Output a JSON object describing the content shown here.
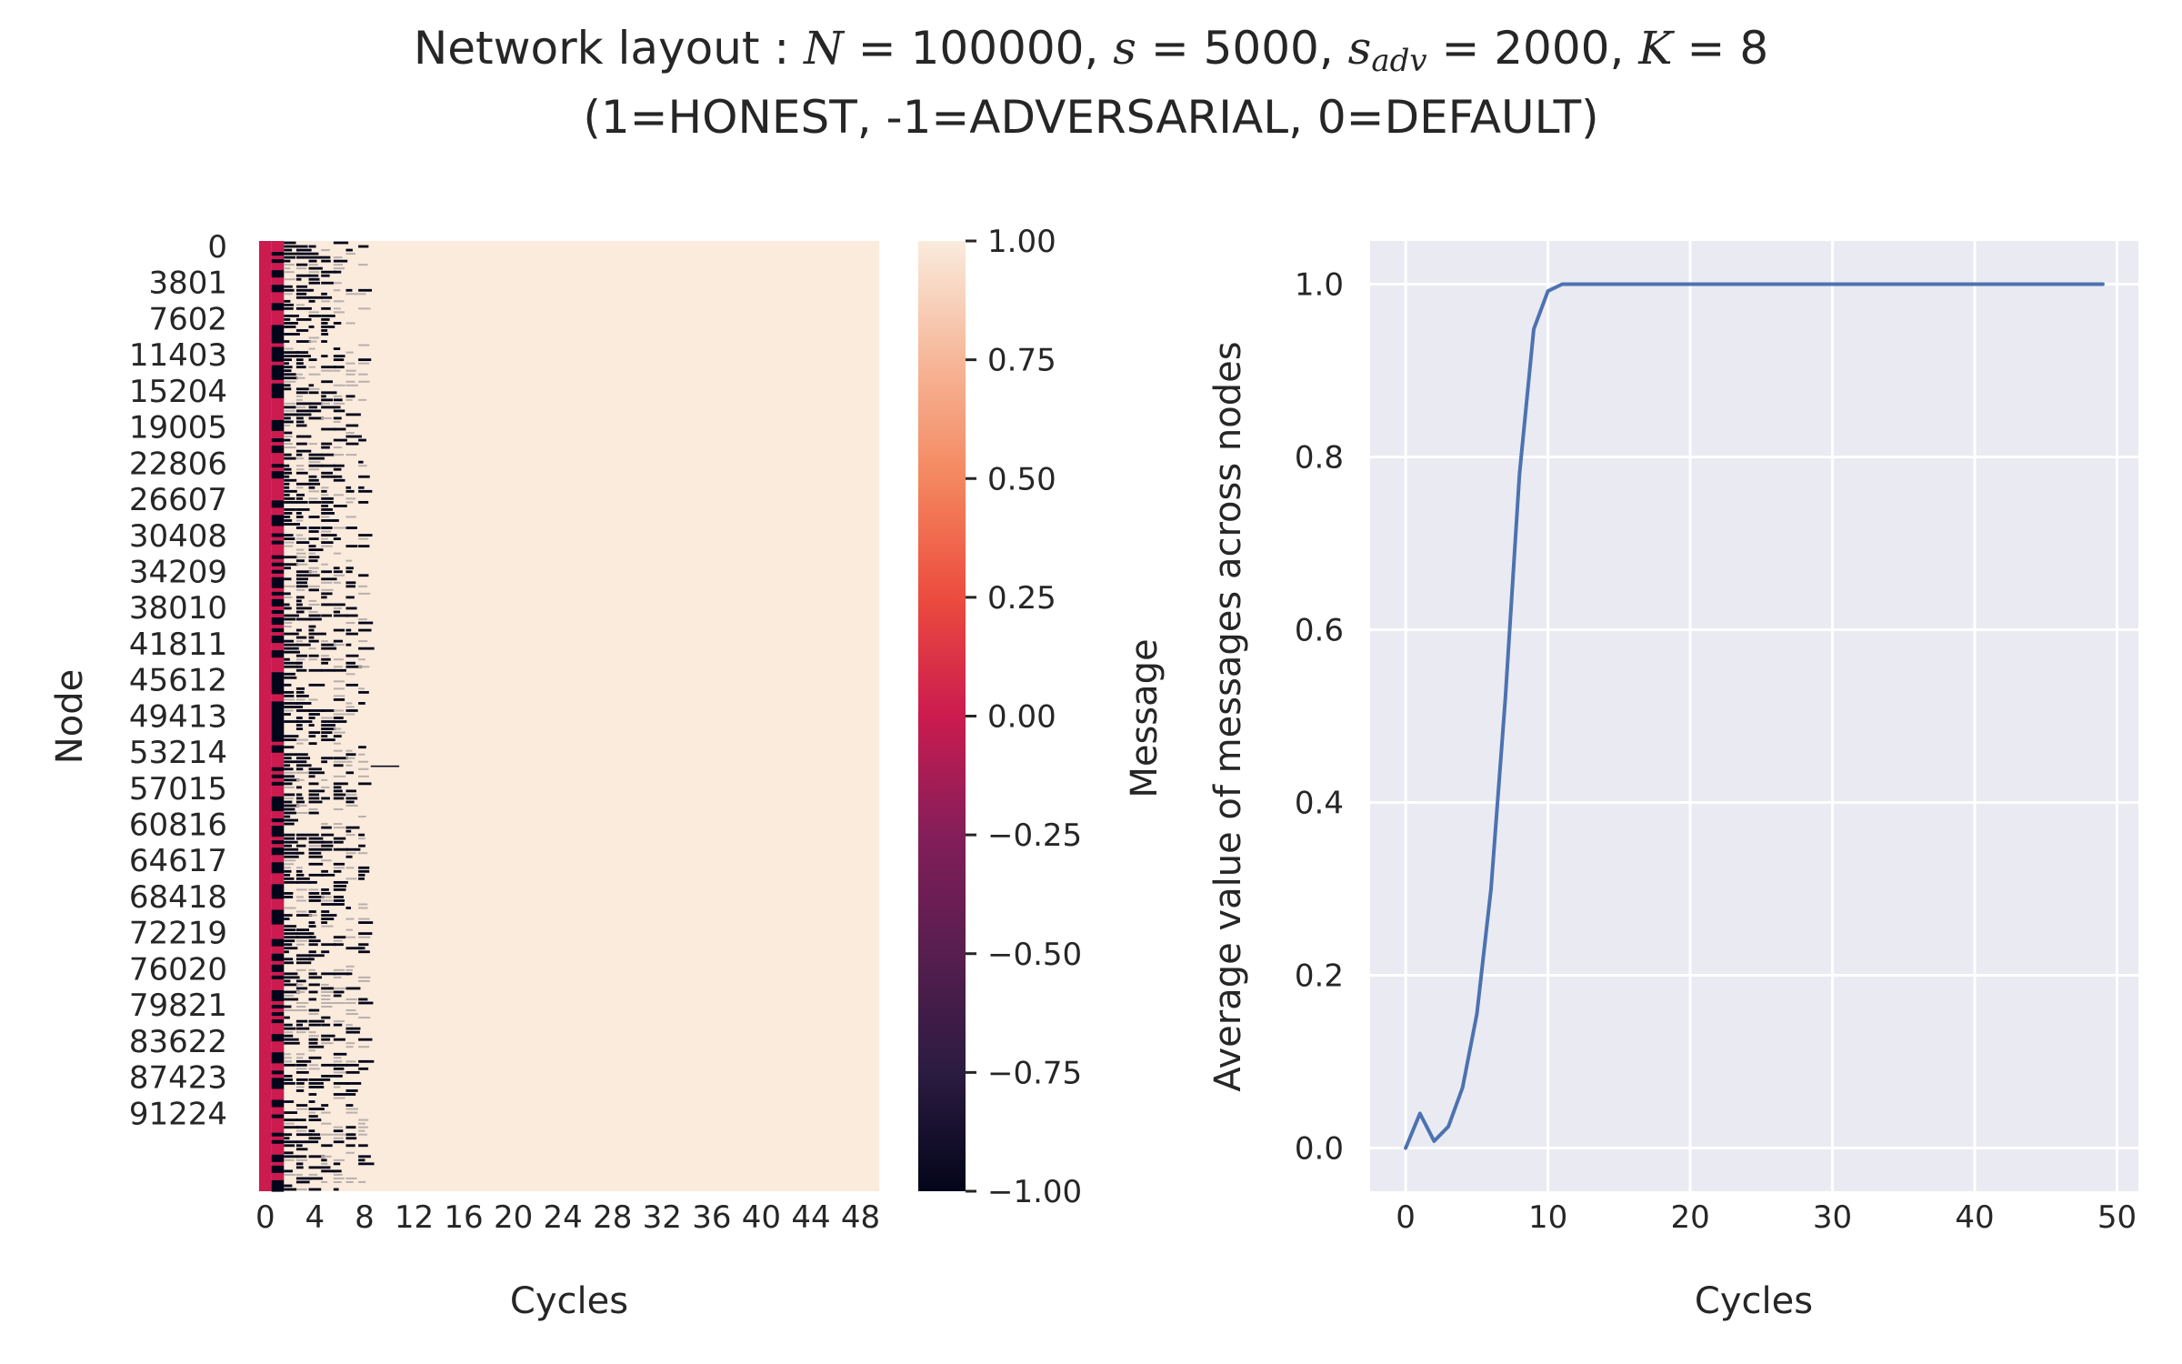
{
  "title": {
    "line1_prefix": "Network layout : ",
    "n_label": "N",
    "n_value": " = 100000, ",
    "s_label": "s",
    "s_value": " = 5000, ",
    "sadv_label": "s",
    "sadv_sub": "adv",
    "sadv_value": " = 2000, ",
    "k_label": "K",
    "k_value": " = 8",
    "line2": "(1=HONEST, -1=ADVERSARIAL, 0=DEFAULT)"
  },
  "chart_data": [
    {
      "type": "heatmap",
      "xlabel": "Cycles",
      "ylabel": "Node",
      "x_ticks": [
        "0",
        "4",
        "8",
        "12",
        "16",
        "20",
        "24",
        "28",
        "32",
        "36",
        "40",
        "44",
        "48"
      ],
      "y_ticks": [
        "0",
        "3801",
        "7602",
        "11403",
        "15204",
        "19005",
        "22806",
        "26607",
        "30408",
        "34209",
        "38010",
        "41811",
        "45612",
        "49413",
        "53214",
        "57015",
        "60816",
        "64617",
        "68418",
        "72219",
        "76020",
        "79821",
        "83622",
        "87423",
        "91224"
      ],
      "n_columns": 50,
      "colorbar": {
        "label": "Message",
        "range": [
          -1.0,
          1.0
        ],
        "ticks": [
          "1.00",
          "0.75",
          "0.50",
          "0.25",
          "0.00",
          "−0.25",
          "−0.50",
          "−0.75",
          "−1.00"
        ]
      },
      "colors": {
        "neg": "#03051a",
        "mid": "#cb1b4f",
        "pos": "#faebdd"
      }
    },
    {
      "type": "line",
      "xlabel": "Cycles",
      "ylabel": "Average value of messages across nodes",
      "xlim": [
        -2.5,
        51.5
      ],
      "ylim": [
        -0.05,
        1.05
      ],
      "x_ticks": [
        0,
        10,
        20,
        30,
        40,
        50
      ],
      "y_ticks": [
        0.0,
        0.2,
        0.4,
        0.6,
        0.8,
        1.0
      ],
      "y_tick_labels": [
        "0.0",
        "0.2",
        "0.4",
        "0.6",
        "0.8",
        "1.0"
      ],
      "grid": true,
      "line_color": "#4c72b0",
      "series": [
        {
          "x": [
            0,
            1,
            2,
            3,
            4,
            5,
            6,
            7,
            8,
            9,
            10,
            11,
            12,
            13,
            14,
            15,
            16,
            17,
            18,
            19,
            20,
            21,
            22,
            23,
            24,
            25,
            26,
            27,
            28,
            29,
            30,
            31,
            32,
            33,
            34,
            35,
            36,
            37,
            38,
            39,
            40,
            41,
            42,
            43,
            44,
            45,
            46,
            47,
            48,
            49
          ],
          "y": [
            0.0,
            0.04,
            0.008,
            0.025,
            0.07,
            0.155,
            0.3,
            0.52,
            0.78,
            0.948,
            0.992,
            1.0,
            1.0,
            1.0,
            1.0,
            1.0,
            1.0,
            1.0,
            1.0,
            1.0,
            1.0,
            1.0,
            1.0,
            1.0,
            1.0,
            1.0,
            1.0,
            1.0,
            1.0,
            1.0,
            1.0,
            1.0,
            1.0,
            1.0,
            1.0,
            1.0,
            1.0,
            1.0,
            1.0,
            1.0,
            1.0,
            1.0,
            1.0,
            1.0,
            1.0,
            1.0,
            1.0,
            1.0,
            1.0,
            1.0
          ]
        }
      ]
    }
  ]
}
